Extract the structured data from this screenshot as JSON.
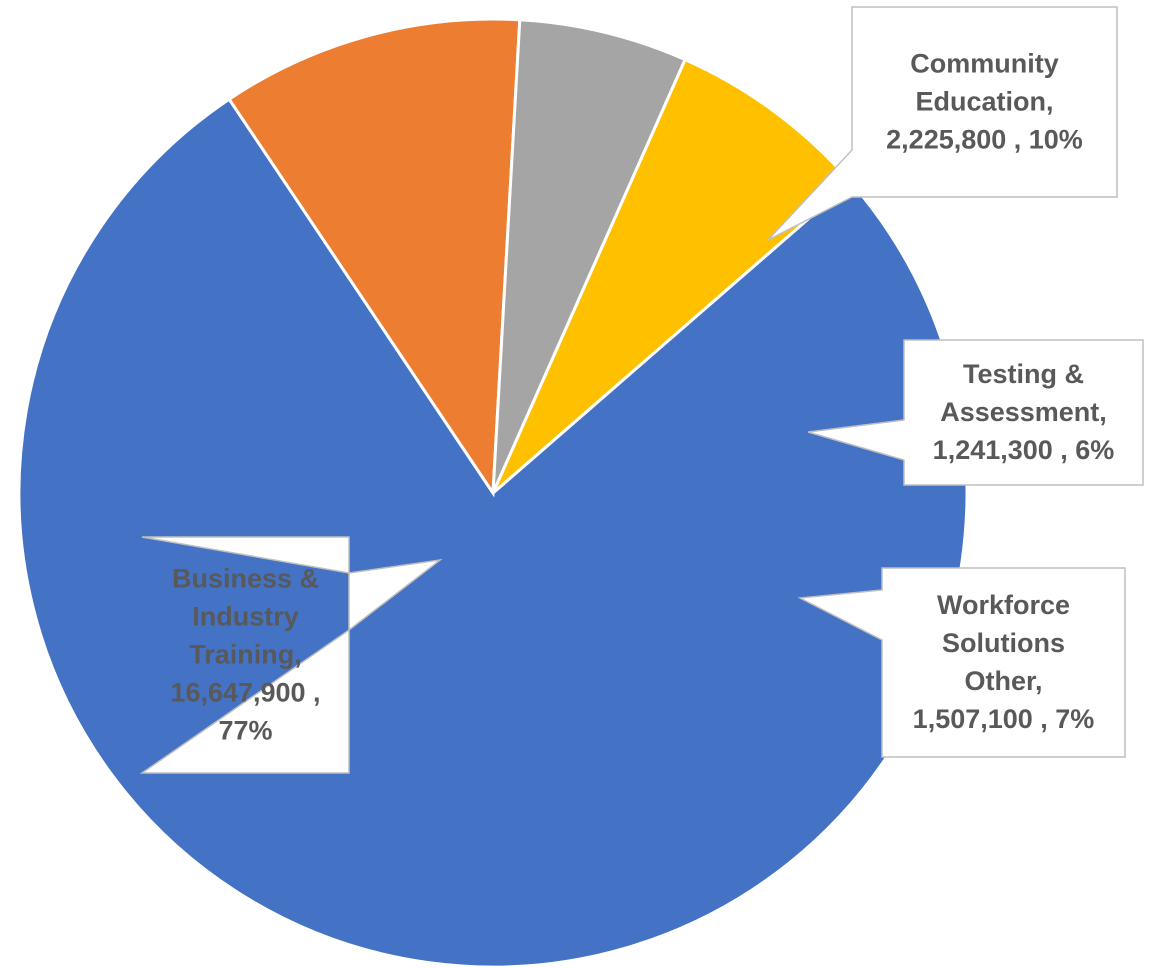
{
  "chart_data": {
    "type": "pie",
    "categories": [
      "Business & Industry Training",
      "Community Education",
      "Testing & Assessment",
      "Workforce Solutions Other"
    ],
    "values": [
      16647900,
      2225800,
      1241300,
      1507100
    ],
    "percent_labels": [
      "77%",
      "10%",
      "6%",
      "7%"
    ],
    "value_labels": [
      "16,647,900",
      "2,225,800",
      "1,241,300",
      "1,507,100"
    ],
    "colors": [
      "#4472C4",
      "#ED7D31",
      "#A5A5A5",
      "#FFC000"
    ],
    "data_labels": [
      [
        "Business &",
        "Industry",
        "Training,",
        "16,647,900 ,",
        "77%"
      ],
      [
        "Community",
        "Education,",
        "2,225,800 , 10%"
      ],
      [
        "Testing &",
        "Assessment,",
        "1,241,300 , 6%"
      ],
      [
        "Workforce",
        "Solutions",
        "Other,",
        "1,507,100 , 7%"
      ]
    ],
    "title": "",
    "legend": "none"
  }
}
